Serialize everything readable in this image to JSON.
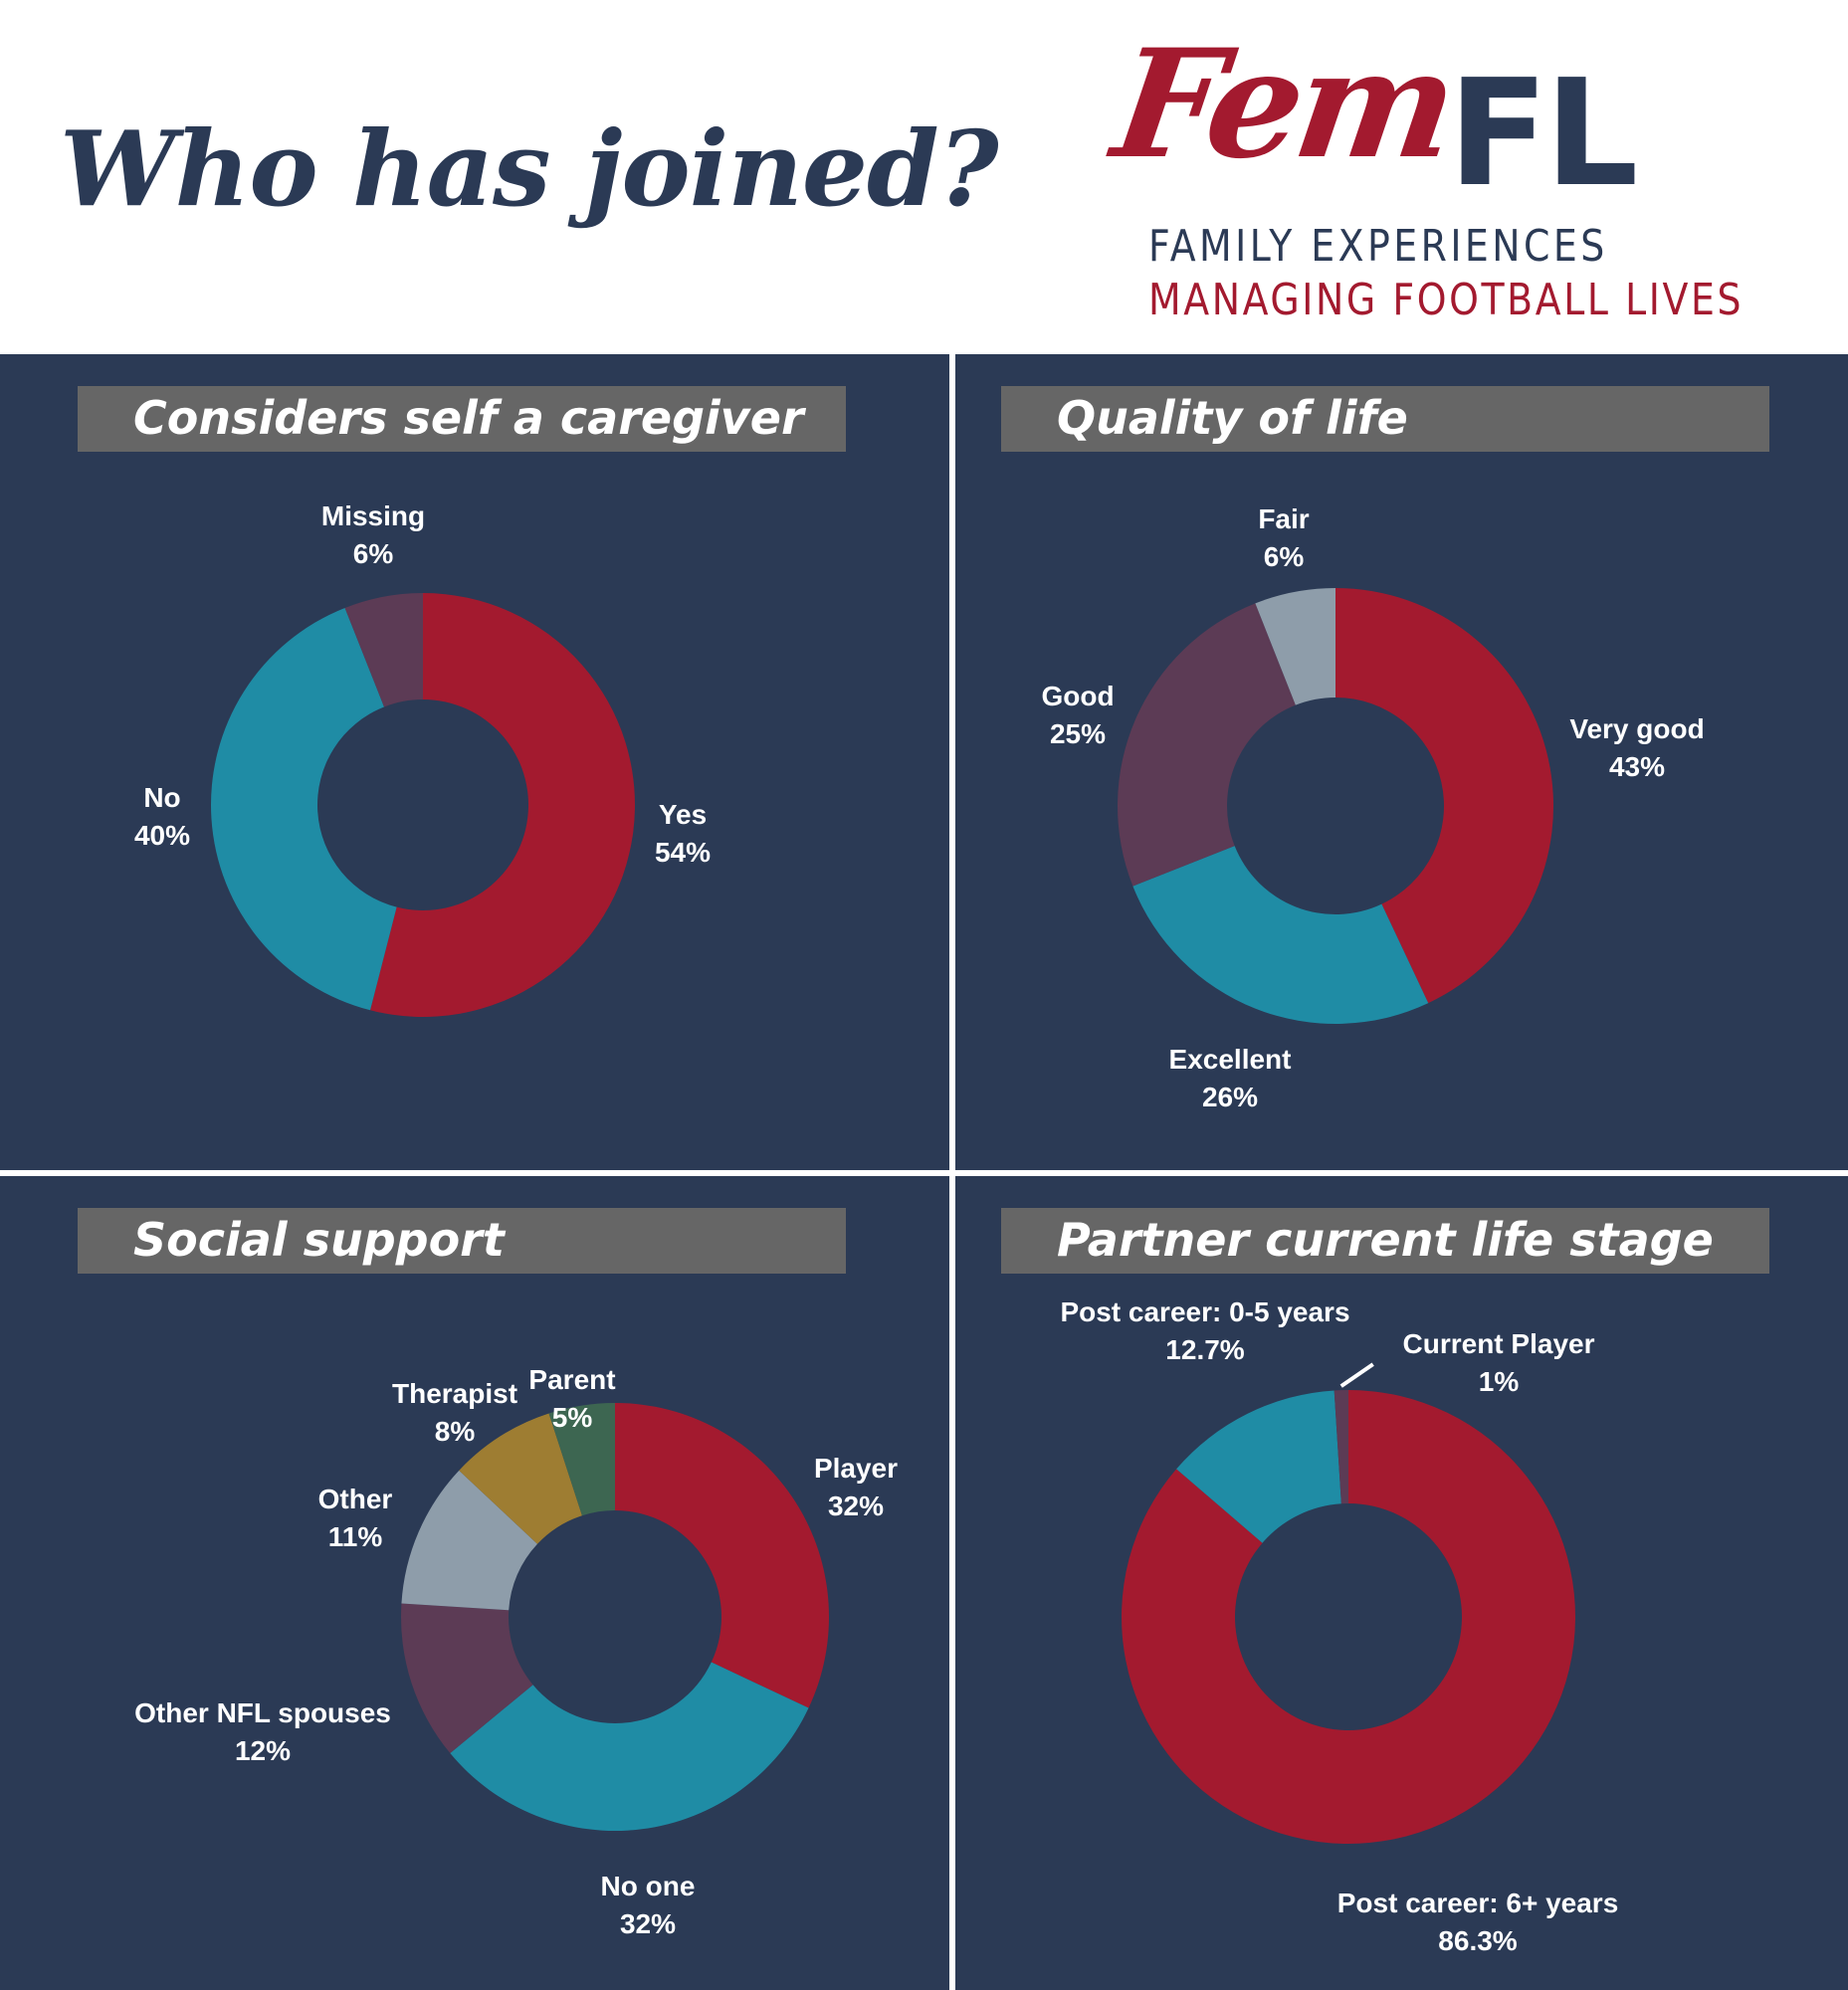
{
  "header": {
    "title": "Who has joined?",
    "logo": {
      "fem": "Fem",
      "fl": "FL",
      "line1": "FAMILY EXPERIENCES",
      "line2": "MANAGING FOOTBALL LIVES"
    }
  },
  "colors": {
    "background": "#ffffff",
    "panel": "#2b3a55",
    "title_bar": "#666666",
    "red": "#a31a2f",
    "teal": "#1f8ca5",
    "plum": "#5c3b55",
    "gray_blue": "#8e9daa",
    "gold": "#9e7d32",
    "green": "#3d6651"
  },
  "chart_data": [
    {
      "type": "pie",
      "title": "Considers self a caregiver",
      "slices": [
        {
          "label": "Yes",
          "value": 54,
          "display": "54%",
          "color": "#a31a2f"
        },
        {
          "label": "No",
          "value": 40,
          "display": "40%",
          "color": "#1f8ca5"
        },
        {
          "label": "Missing",
          "value": 6,
          "display": "6%",
          "color": "#5c3b55"
        }
      ]
    },
    {
      "type": "pie",
      "title": "Quality of life",
      "slices": [
        {
          "label": "Very good",
          "value": 43,
          "display": "43%",
          "color": "#a31a2f"
        },
        {
          "label": "Excellent",
          "value": 26,
          "display": "26%",
          "color": "#1f8ca5"
        },
        {
          "label": "Good",
          "value": 25,
          "display": "25%",
          "color": "#5c3b55"
        },
        {
          "label": "Fair",
          "value": 6,
          "display": "6%",
          "color": "#8e9daa"
        }
      ]
    },
    {
      "type": "pie",
      "title": "Social support",
      "slices": [
        {
          "label": "Player",
          "value": 32,
          "display": "32%",
          "color": "#a31a2f"
        },
        {
          "label": "No one",
          "value": 32,
          "display": "32%",
          "color": "#1f8ca5"
        },
        {
          "label": "Other NFL spouses",
          "value": 12,
          "display": "12%",
          "color": "#5c3b55"
        },
        {
          "label": "Other",
          "value": 11,
          "display": "11%",
          "color": "#8e9daa"
        },
        {
          "label": "Therapist",
          "value": 8,
          "display": "8%",
          "color": "#9e7d32"
        },
        {
          "label": "Parent",
          "value": 5,
          "display": "5%",
          "color": "#3d6651"
        }
      ]
    },
    {
      "type": "pie",
      "title": "Partner current life stage",
      "slices": [
        {
          "label": "Post career: 6+ years",
          "value": 86.3,
          "display": "86.3%",
          "color": "#a31a2f"
        },
        {
          "label": "Post career: 0-5 years",
          "value": 12.7,
          "display": "12.7%",
          "color": "#1f8ca5"
        },
        {
          "label": "Current Player",
          "value": 1,
          "display": "1%",
          "color": "#5c3b55"
        }
      ]
    }
  ]
}
